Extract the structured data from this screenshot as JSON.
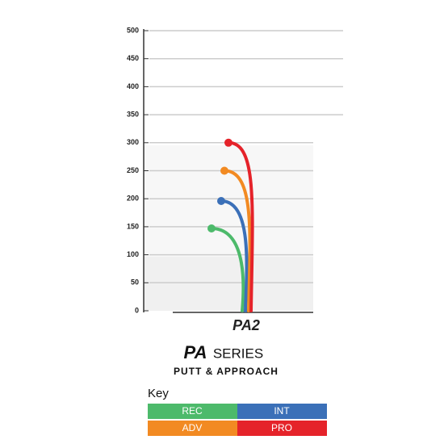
{
  "chart_data": {
    "type": "flight",
    "product": "PA2",
    "series_logo": "PA",
    "series_title": "SERIES",
    "subtitle": "PUTT & APPROACH",
    "key_title": "Key",
    "ylim": [
      0,
      500
    ],
    "yticks": [
      0,
      50,
      100,
      150,
      200,
      250,
      300,
      350,
      400,
      450,
      500
    ],
    "grid": true,
    "series": [
      {
        "name": "REC",
        "color": "#4dba6b",
        "value": 147
      },
      {
        "name": "INT",
        "color": "#3b70b8",
        "value": 196
      },
      {
        "name": "ADV",
        "color": "#f28a22",
        "value": 250
      },
      {
        "name": "PRO",
        "color": "#e5232a",
        "value": 300
      }
    ]
  }
}
